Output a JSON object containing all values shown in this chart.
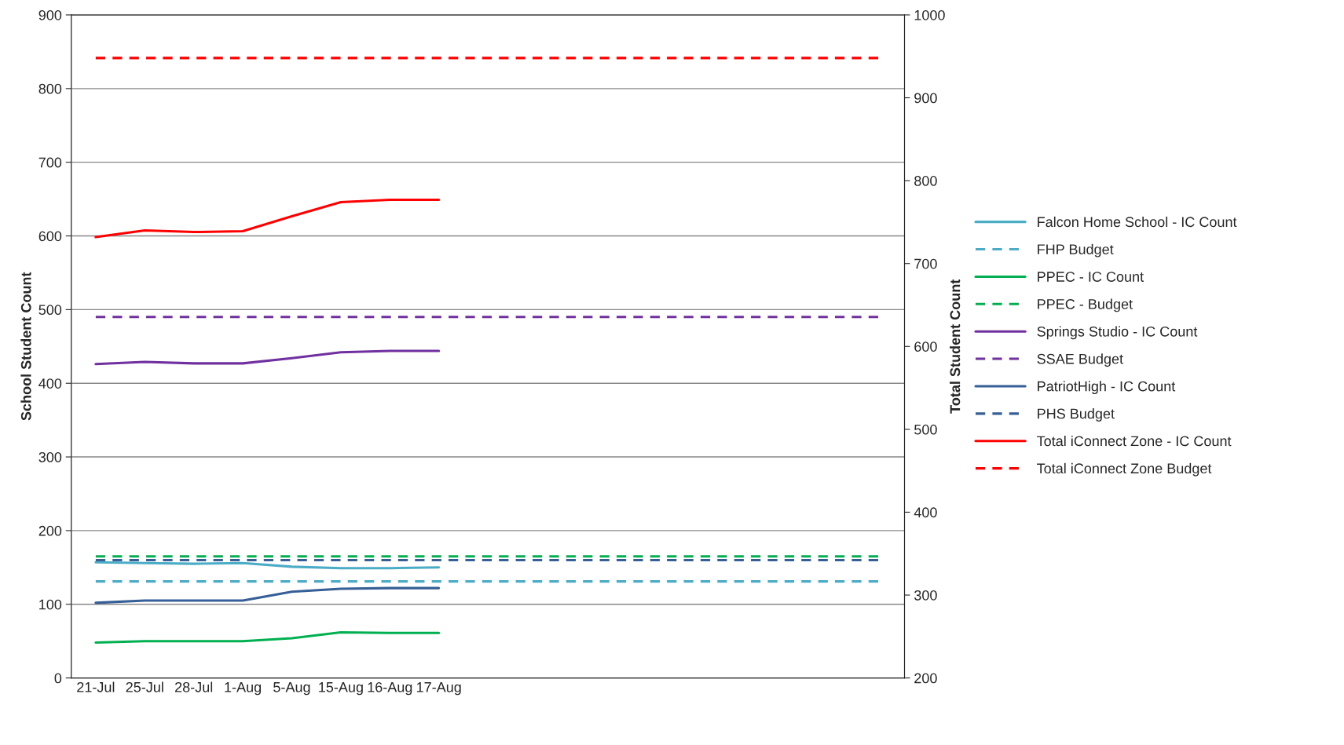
{
  "chart_data": {
    "type": "line",
    "categories": [
      "21-Jul",
      "25-Jul",
      "28-Jul",
      "1-Aug",
      "5-Aug",
      "15-Aug",
      "16-Aug",
      "17-Aug",
      null,
      null,
      null,
      null,
      null,
      null,
      null,
      null,
      null
    ],
    "ylabel": "School Student Count",
    "y2label": "Total Student Count",
    "ylim": [
      0,
      900
    ],
    "yticks": [
      0,
      100,
      200,
      300,
      400,
      500,
      600,
      700,
      800,
      900
    ],
    "y2lim": [
      200,
      1000
    ],
    "y2ticks": [
      200,
      300,
      400,
      500,
      600,
      700,
      800,
      900,
      1000
    ],
    "grid": "y",
    "legend": "right",
    "marker": "none",
    "series": [
      {
        "name": "Falcon Home School - IC Count",
        "color": "#4bacc6",
        "line_style": "solid",
        "values": [
          157,
          156,
          155,
          156,
          151,
          149,
          149,
          150,
          null,
          null,
          null,
          null,
          null,
          null,
          null,
          null,
          null
        ]
      },
      {
        "name": "FHP Budget",
        "color": "#4bacc6",
        "line_style": "dashed",
        "values": [
          131,
          131,
          131,
          131,
          131,
          131,
          131,
          131,
          131,
          131,
          131,
          131,
          131,
          131,
          131,
          131,
          131
        ]
      },
      {
        "name": "PPEC - IC Count",
        "color": "#00b050",
        "line_style": "solid",
        "values": [
          48,
          50,
          50,
          50,
          54,
          62,
          61,
          61,
          null,
          null,
          null,
          null,
          null,
          null,
          null,
          null,
          null
        ]
      },
      {
        "name": "PPEC - Budget",
        "color": "#00b050",
        "line_style": "dashed",
        "values": [
          165,
          165,
          165,
          165,
          165,
          165,
          165,
          165,
          165,
          165,
          165,
          165,
          165,
          165,
          165,
          165,
          165
        ]
      },
      {
        "name": "Springs Studio - IC Count",
        "color": "#7030a0",
        "line_style": "solid",
        "values": [
          426,
          429,
          427,
          427,
          434,
          442,
          444,
          444,
          null,
          null,
          null,
          null,
          null,
          null,
          null,
          null,
          null
        ]
      },
      {
        "name": "SSAE Budget",
        "color": "#7030a0",
        "line_style": "dashed",
        "values": [
          490,
          490,
          490,
          490,
          490,
          490,
          490,
          490,
          490,
          490,
          490,
          490,
          490,
          490,
          490,
          490,
          490
        ]
      },
      {
        "name": "PatriotHigh - IC Count",
        "color": "#355f96",
        "line_style": "solid",
        "values": [
          102,
          105,
          105,
          105,
          117,
          121,
          122,
          122,
          null,
          null,
          null,
          null,
          null,
          null,
          null,
          null,
          null
        ]
      },
      {
        "name": "PHS Budget",
        "color": "#355f96",
        "line_style": "dashed",
        "values": [
          160,
          160,
          160,
          160,
          160,
          160,
          160,
          160,
          160,
          160,
          160,
          160,
          160,
          160,
          160,
          160,
          160
        ]
      },
      {
        "name": "Total iConnect Zone - IC Count",
        "color": "#ff0000",
        "line_style": "solid",
        "axis": "y2",
        "values": [
          732,
          740,
          738,
          739,
          757,
          774,
          777,
          777,
          null,
          null,
          null,
          null,
          null,
          null,
          null,
          null,
          null
        ]
      },
      {
        "name": "Total iConnect Zone Budget",
        "color": "#ff0000",
        "line_style": "dashed",
        "axis": "y2",
        "values": [
          948,
          948,
          948,
          948,
          948,
          948,
          948,
          948,
          948,
          948,
          948,
          948,
          948,
          948,
          948,
          948,
          948
        ]
      }
    ]
  }
}
